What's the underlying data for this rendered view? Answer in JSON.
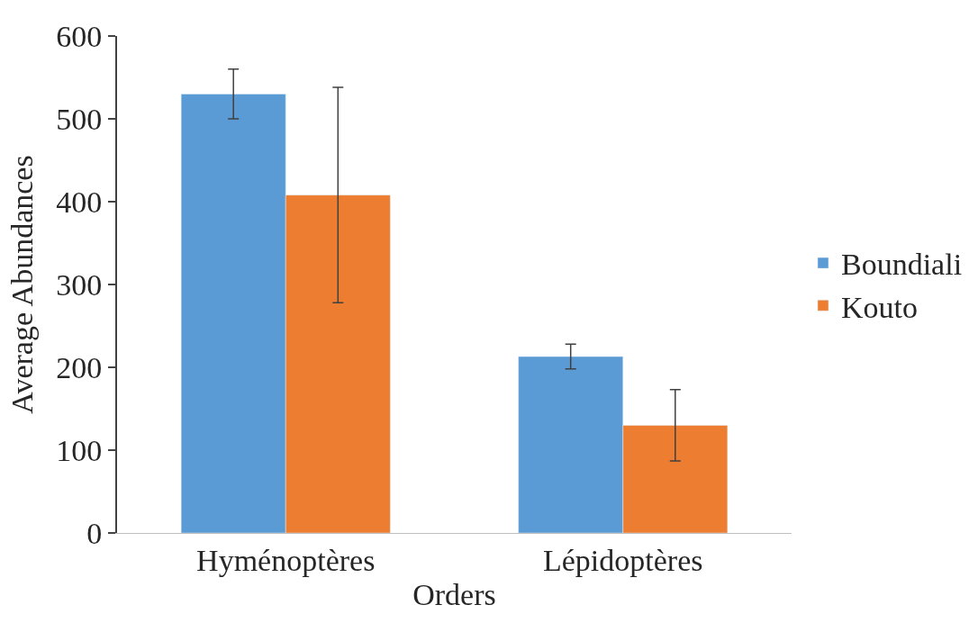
{
  "chart_data": {
    "type": "bar",
    "xlabel": "Orders",
    "ylabel": "Average Abundances",
    "categories": [
      "Hyménoptères",
      "Lépidoptères"
    ],
    "series": [
      {
        "name": "Boundiali",
        "color": "#5b9bd5",
        "values": [
          530,
          213
        ],
        "errors": [
          30,
          15
        ]
      },
      {
        "name": "Kouto",
        "color": "#ed7d31",
        "values": [
          408,
          130
        ],
        "errors": [
          130,
          43
        ]
      }
    ],
    "ylim": [
      0,
      600
    ],
    "yticks": [
      0,
      100,
      200,
      300,
      400,
      500,
      600
    ],
    "legend": "right"
  }
}
